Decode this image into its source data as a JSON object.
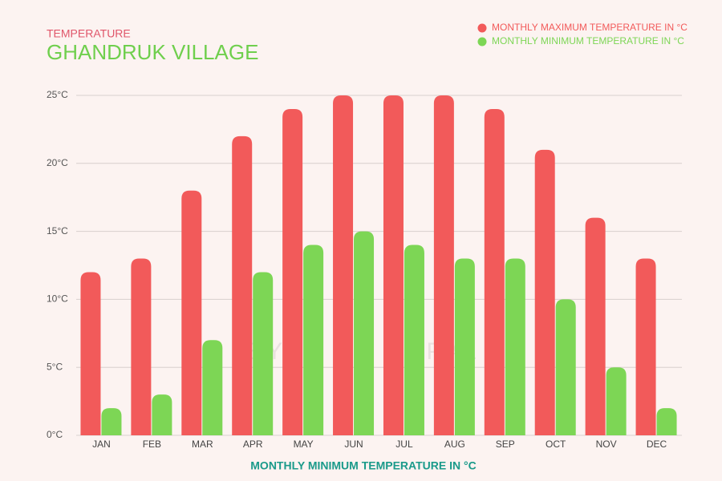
{
  "chart_data": {
    "type": "bar",
    "subtitle": "TEMPERATURE",
    "title": "GHANDRUK VILLAGE",
    "x_label": "MONTHLY MINIMUM TEMPERATURE IN °C",
    "watermark": "EYES ON NEPAL",
    "categories": [
      "JAN",
      "FEB",
      "MAR",
      "APR",
      "MAY",
      "JUN",
      "JUL",
      "AUG",
      "SEP",
      "OCT",
      "NOV",
      "DEC"
    ],
    "series": [
      {
        "name": "MONTHLY MAXIMUM TEMPERATURE IN °C",
        "color": "#f25a5a",
        "values": [
          12,
          13,
          18,
          22,
          24,
          25,
          25,
          25,
          24,
          21,
          16,
          13
        ]
      },
      {
        "name": "MONTHLY MINIMUM TEMPERATURE IN °C",
        "color": "#7dd655",
        "values": [
          2,
          3,
          7,
          12,
          14,
          15,
          14,
          13,
          13,
          10,
          5,
          2
        ]
      }
    ],
    "ylim": [
      0,
      25
    ],
    "yticks": [
      {
        "value": 0,
        "label": "0°C"
      },
      {
        "value": 5,
        "label": "5°C"
      },
      {
        "value": 10,
        "label": "10°C"
      },
      {
        "value": 15,
        "label": "15°C"
      },
      {
        "value": 20,
        "label": "20°C"
      },
      {
        "value": 25,
        "label": "25°C"
      }
    ],
    "grid": true,
    "legend": "top-right"
  }
}
